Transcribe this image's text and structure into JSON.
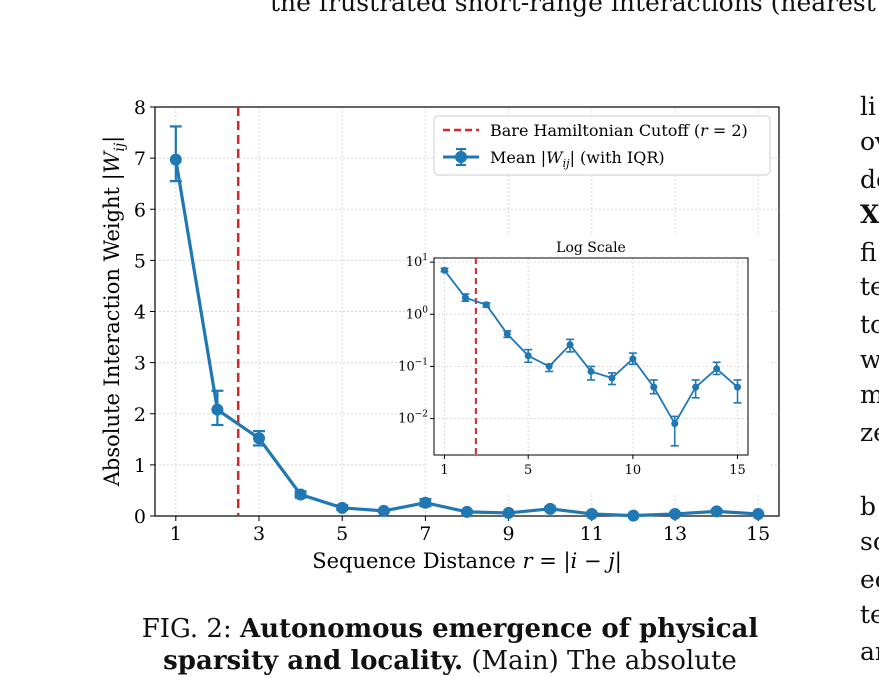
{
  "page": {
    "top_text": "the frustrated short-range interactions (nearest",
    "side_fragments": [
      "li",
      "ov",
      "de",
      "X",
      "fi",
      "te",
      "to",
      "w",
      "m",
      "ze",
      "b",
      "sc",
      "ec",
      "te",
      "ar"
    ],
    "caption_prefix": "FIG. 2:",
    "caption_bold": "Autonomous emergence of physical sparsity and locality.",
    "caption_rest": "(Main) The absolute"
  },
  "colors": {
    "series": "#1f77b4",
    "cutoff": "#d62728"
  },
  "chart_data": [
    {
      "type": "line",
      "title": "",
      "xlabel": "Sequence Distance r = |i − j|",
      "ylabel": "Absolute Interaction Weight |W_ij|",
      "xlim": [
        0.5,
        15.5
      ],
      "ylim": [
        0,
        8
      ],
      "xticks": [
        1,
        3,
        5,
        7,
        9,
        11,
        13,
        15
      ],
      "yticks": [
        0,
        1,
        2,
        3,
        4,
        5,
        6,
        7,
        8
      ],
      "grid": true,
      "legend_position": "top-right",
      "legend": [
        "Bare Hamiltonian Cutoff (r = 2)",
        "Mean |W_ij| (with IQR)"
      ],
      "cutoff_x": 2.5,
      "series": [
        {
          "name": "Mean |W_ij| (with IQR)",
          "x": [
            1,
            2,
            3,
            4,
            5,
            6,
            7,
            8,
            9,
            10,
            11,
            12,
            13,
            14,
            15
          ],
          "y": [
            6.97,
            2.08,
            1.52,
            0.42,
            0.16,
            0.1,
            0.26,
            0.08,
            0.06,
            0.14,
            0.04,
            0.008,
            0.04,
            0.09,
            0.04
          ],
          "err_low": [
            6.55,
            1.78,
            1.38,
            0.36,
            0.12,
            0.08,
            0.19,
            0.055,
            0.045,
            0.11,
            0.03,
            0.003,
            0.025,
            0.07,
            0.02
          ],
          "err_high": [
            7.62,
            2.45,
            1.66,
            0.48,
            0.21,
            0.11,
            0.33,
            0.1,
            0.075,
            0.18,
            0.055,
            0.011,
            0.055,
            0.12,
            0.055
          ]
        }
      ]
    },
    {
      "type": "line",
      "title": "Log Scale",
      "xscale": "linear",
      "yscale": "log",
      "xlim": [
        0.5,
        15.5
      ],
      "ylim": [
        0.002,
        12
      ],
      "xticks": [
        1,
        5,
        10,
        15
      ],
      "yticks": [
        "10^1",
        "10^0",
        "10^-1",
        "10^-2"
      ],
      "grid": true,
      "cutoff_x": 2.5,
      "series": [
        {
          "x": [
            1,
            2,
            3,
            4,
            5,
            6,
            7,
            8,
            9,
            10,
            11,
            12,
            13,
            14,
            15
          ],
          "y": [
            6.97,
            2.08,
            1.52,
            0.42,
            0.16,
            0.1,
            0.26,
            0.08,
            0.06,
            0.14,
            0.04,
            0.008,
            0.04,
            0.09,
            0.04
          ],
          "err_low": [
            6.55,
            1.78,
            1.38,
            0.36,
            0.12,
            0.08,
            0.19,
            0.055,
            0.045,
            0.11,
            0.03,
            0.003,
            0.025,
            0.07,
            0.02
          ],
          "err_high": [
            7.62,
            2.45,
            1.66,
            0.48,
            0.21,
            0.11,
            0.33,
            0.1,
            0.075,
            0.18,
            0.055,
            0.011,
            0.055,
            0.12,
            0.055
          ]
        }
      ]
    }
  ]
}
